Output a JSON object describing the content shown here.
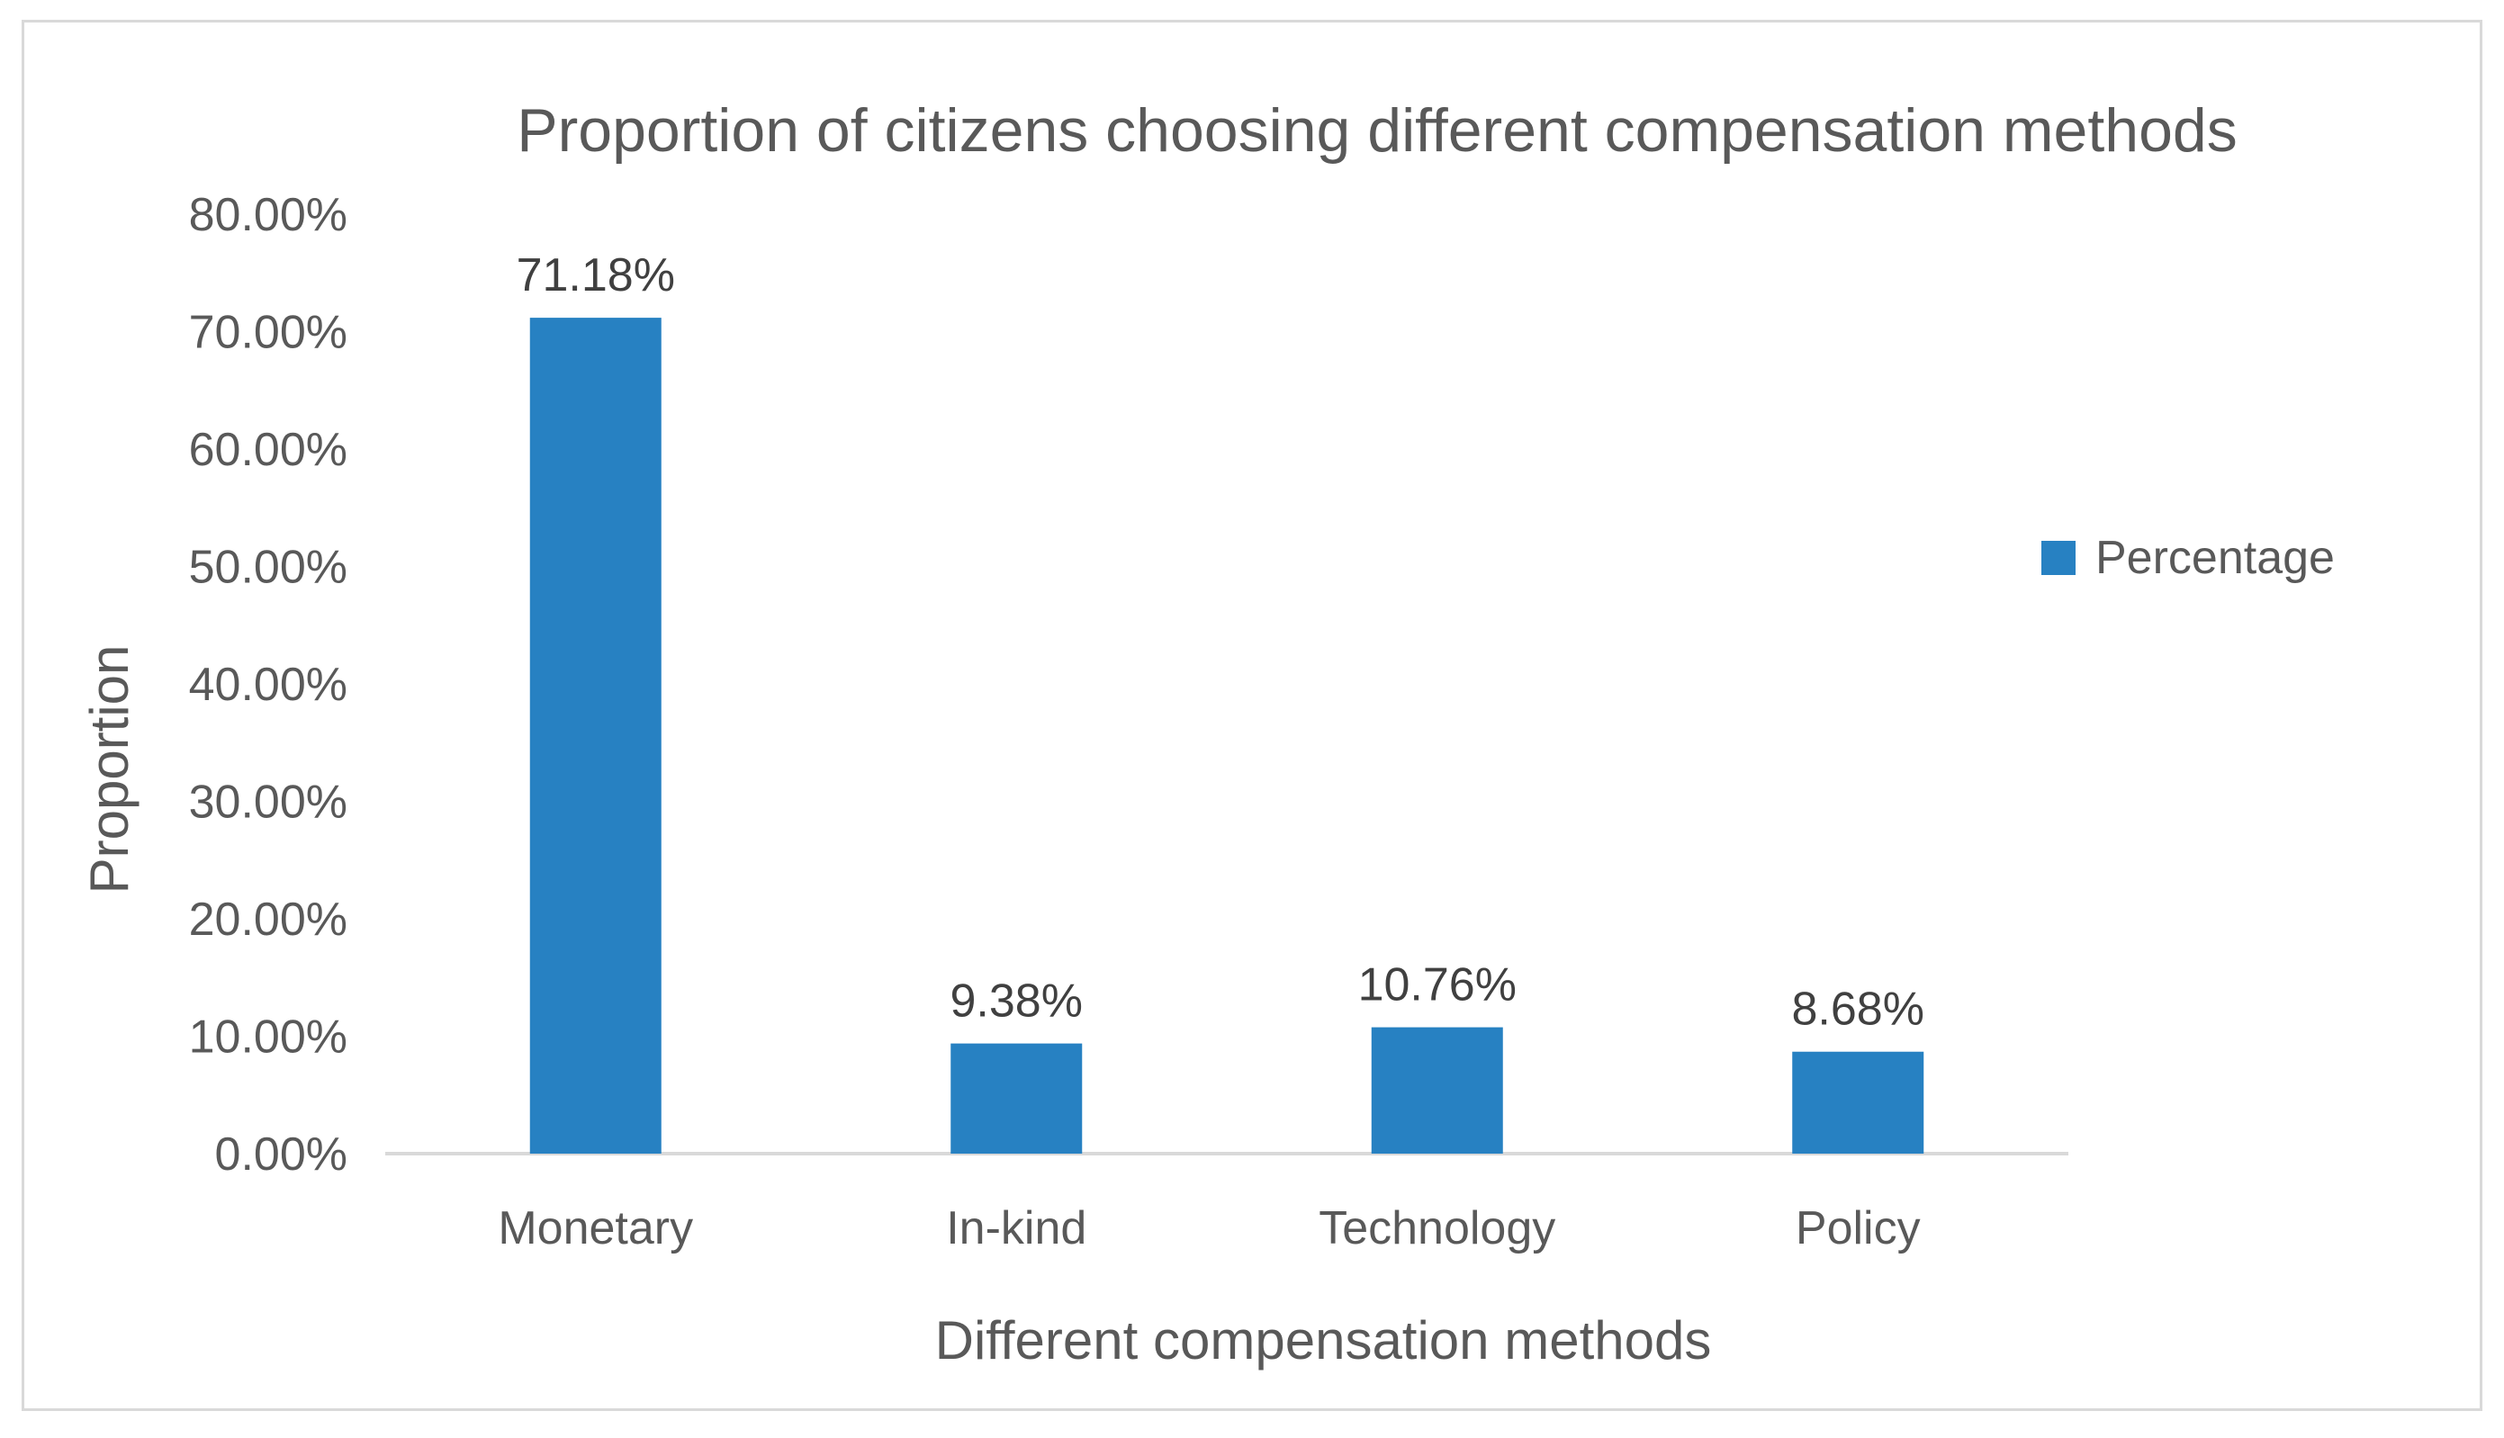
{
  "chart_data": {
    "type": "bar",
    "title": "Proportion of citizens choosing different compensation methods",
    "xlabel": "Different compensation methods",
    "ylabel": "Proportion",
    "categories": [
      "Monetary",
      "In-kind",
      "Technology",
      "Policy"
    ],
    "series": [
      {
        "name": "Percentage",
        "values": [
          71.18,
          9.38,
          10.76,
          8.68
        ],
        "data_labels": [
          "71.18%",
          "9.38%",
          "10.76%",
          "8.68%"
        ],
        "color": "#2781C2"
      }
    ],
    "ylim": [
      0,
      80
    ],
    "yticks": [
      0,
      10,
      20,
      30,
      40,
      50,
      60,
      70,
      80
    ],
    "ytick_labels": [
      "0.00%",
      "10.00%",
      "20.00%",
      "30.00%",
      "40.00%",
      "50.00%",
      "60.00%",
      "70.00%",
      "80.00%"
    ],
    "grid": false,
    "legend_position": "right",
    "colors": {
      "bar": "#2781C2",
      "axis_line": "#d9d9d9",
      "text": "#595959",
      "border": "#d9d9d9"
    }
  }
}
